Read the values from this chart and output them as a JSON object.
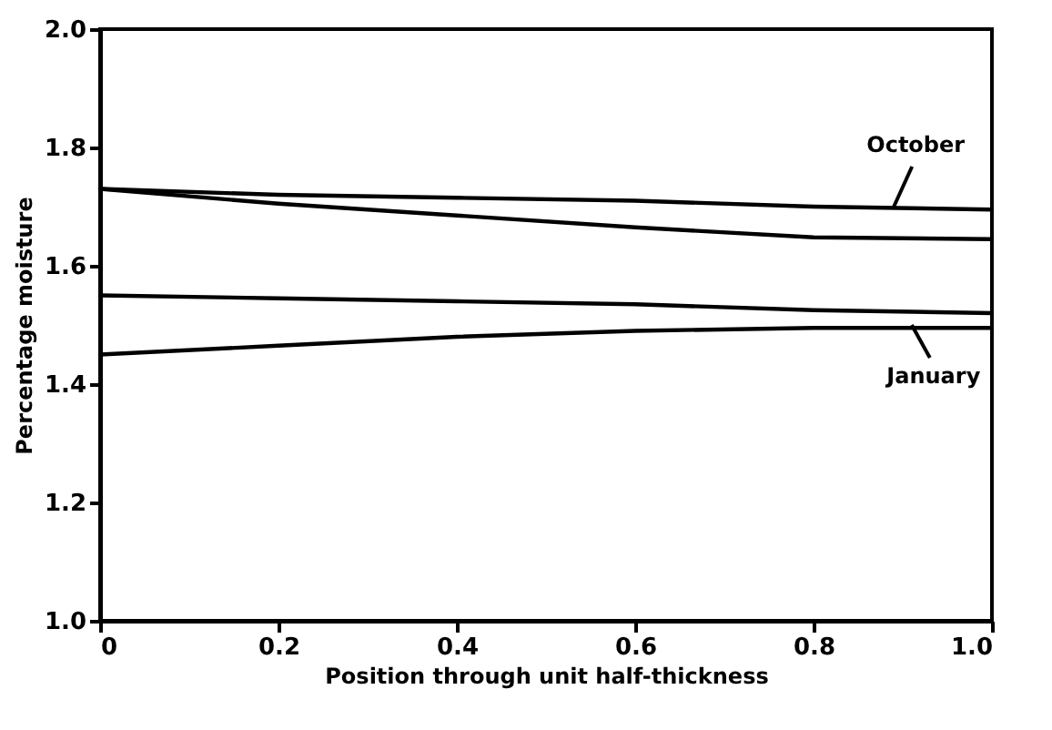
{
  "chart_data": {
    "type": "line",
    "xlabel": "Position through unit half-thickness",
    "ylabel": "Percentage moisture",
    "x": [
      0,
      0.2,
      0.4,
      0.6,
      0.8,
      1.0
    ],
    "series": [
      {
        "color": "#000000",
        "values": [
          1.73,
          1.72,
          1.715,
          1.71,
          1.7,
          1.695
        ]
      },
      {
        "color": "#000000",
        "values": [
          1.73,
          1.705,
          1.685,
          1.665,
          1.648,
          1.645
        ]
      },
      {
        "color": "#000000",
        "values": [
          1.55,
          1.545,
          1.54,
          1.535,
          1.525,
          1.52
        ]
      },
      {
        "color": "#000000",
        "values": [
          1.45,
          1.465,
          1.48,
          1.49,
          1.495,
          1.495
        ]
      }
    ],
    "annotations": [
      {
        "text": "October",
        "x": 0.89,
        "y": 1.7
      },
      {
        "text": "January",
        "x": 0.91,
        "y": 1.5
      }
    ],
    "xlim": [
      0,
      1.0
    ],
    "xticks": [
      0,
      0.2,
      0.4,
      0.6,
      0.8,
      {
        "value": 1,
        "label": "1.0"
      }
    ],
    "ylim": [
      1.0,
      2.0
    ],
    "yticks": [
      {
        "value": 1,
        "label": "1.0"
      },
      1.2,
      1.4,
      1.6,
      1.8,
      {
        "value": 2,
        "label": "2.0"
      }
    ],
    "grid": false,
    "legend": false,
    "marker": "none",
    "line_style": "solid"
  }
}
